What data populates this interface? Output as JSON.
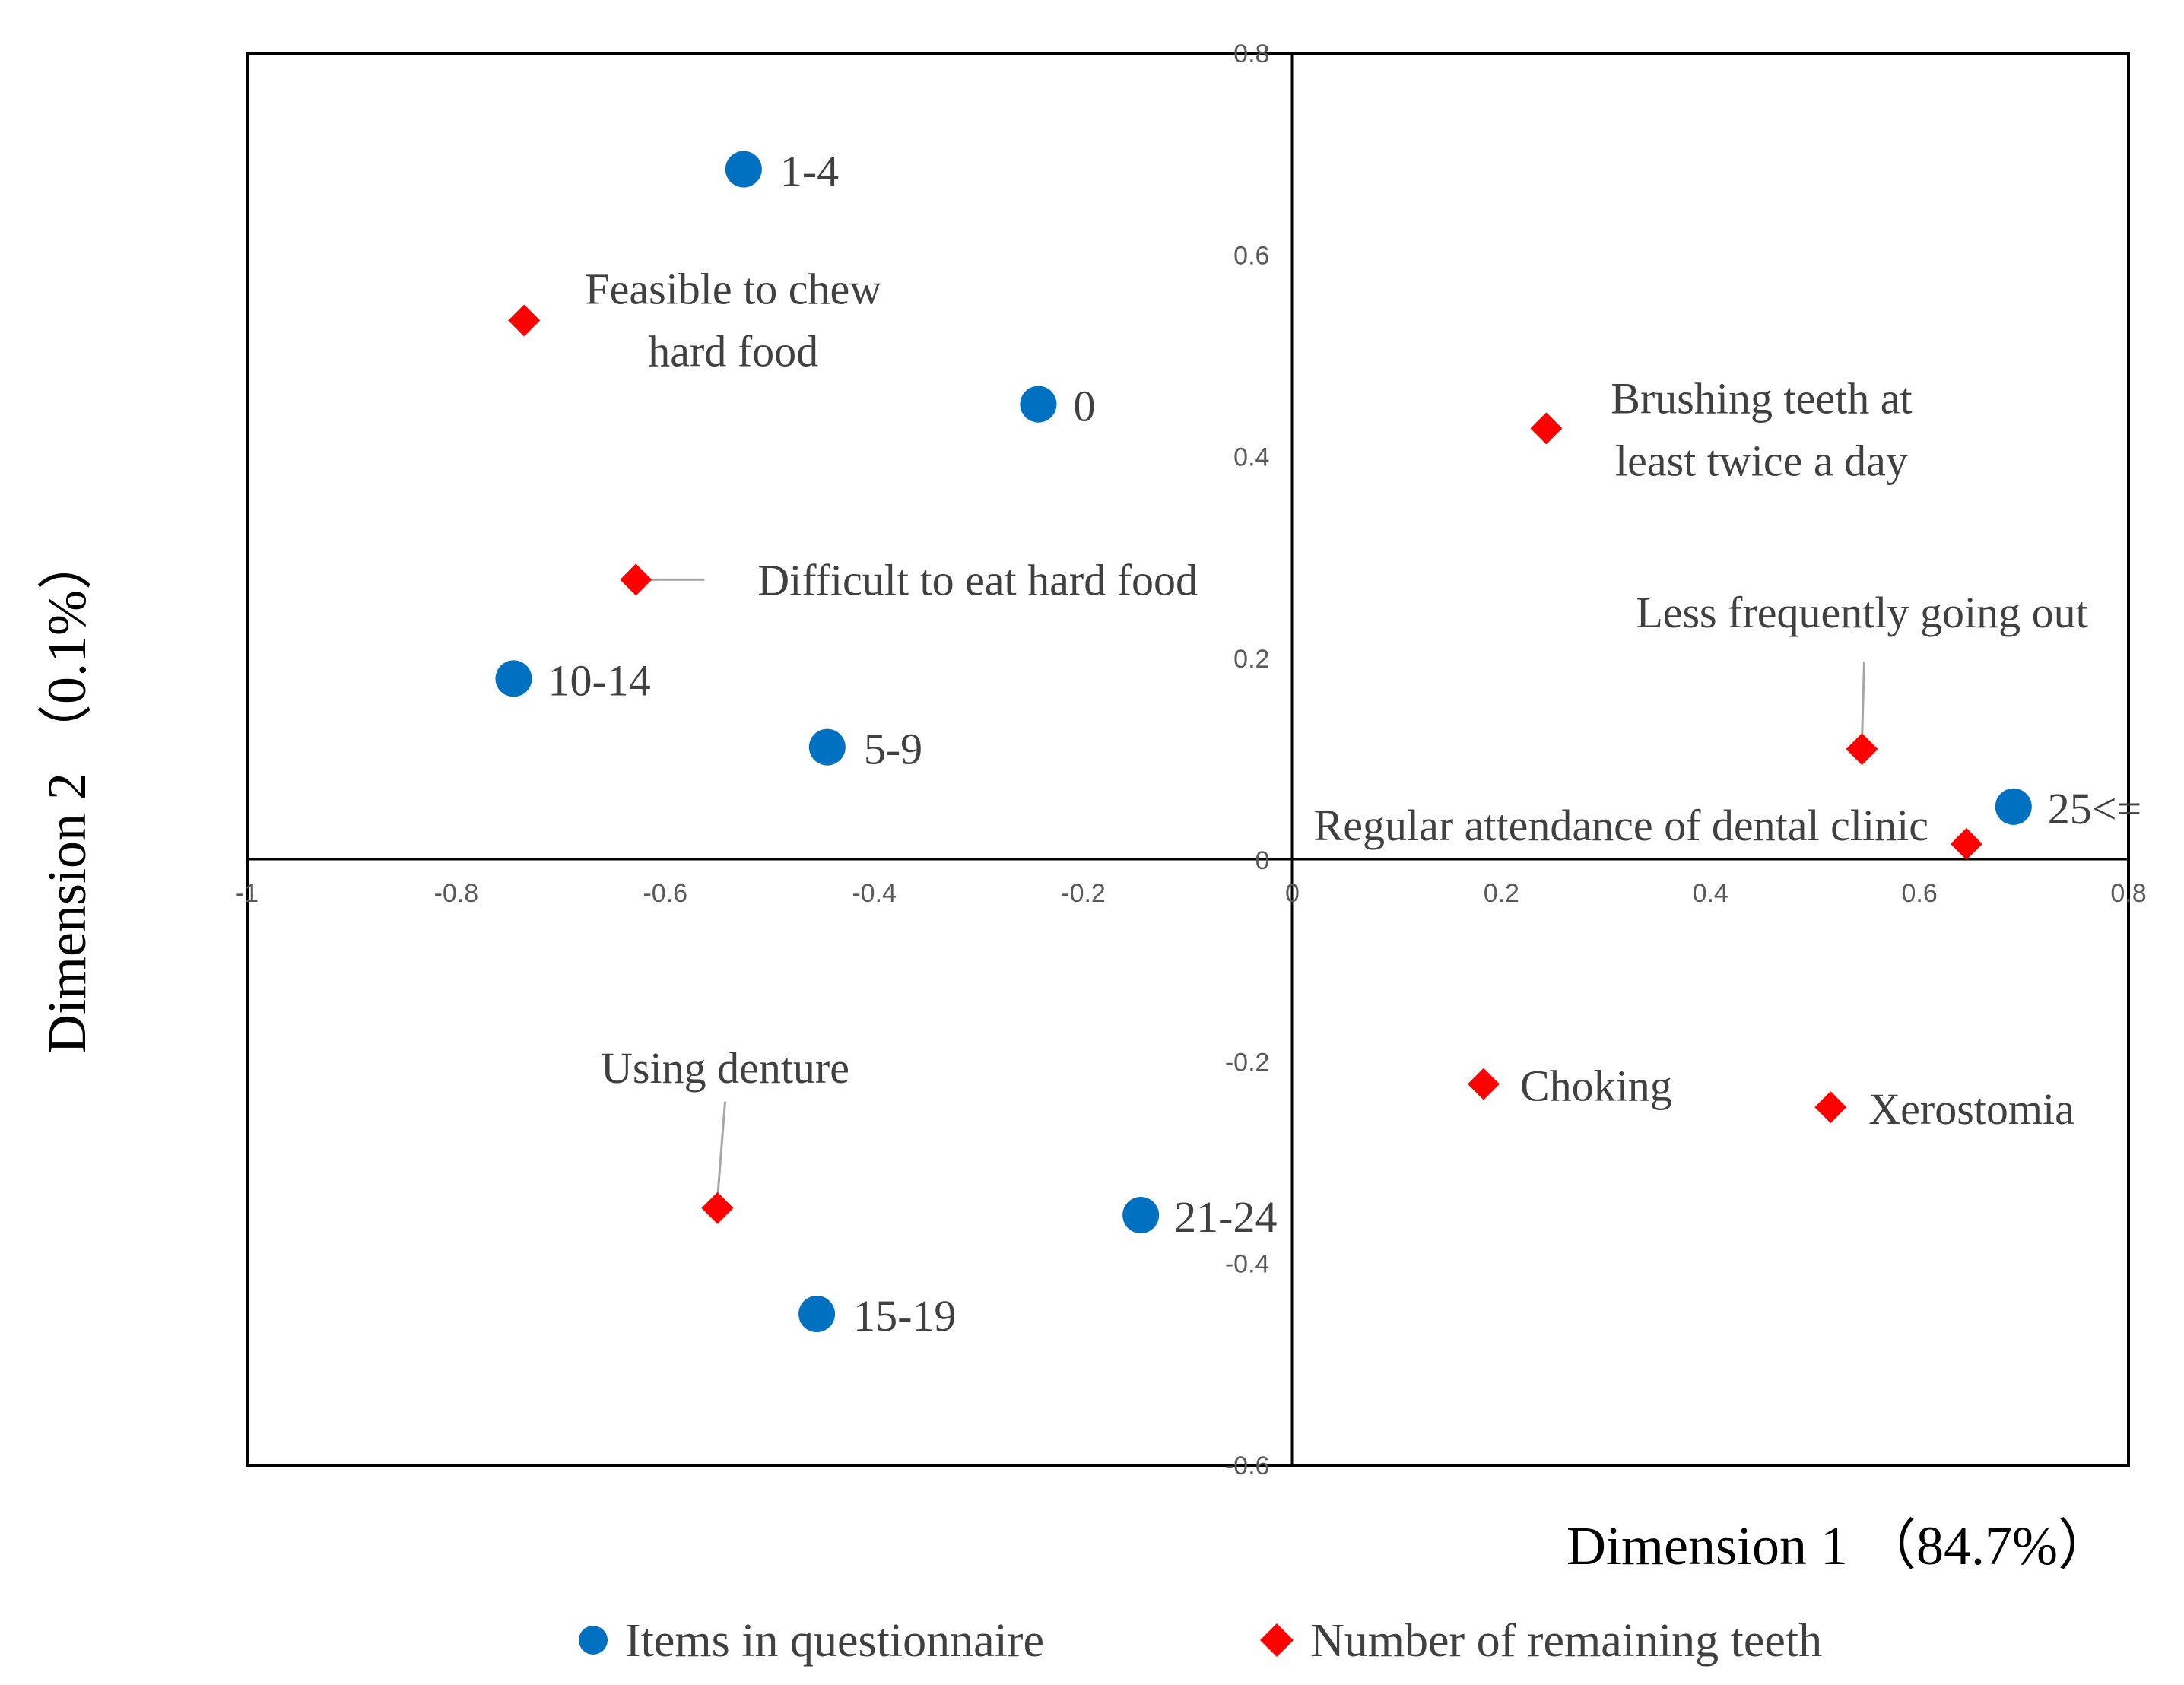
{
  "chart_data": {
    "type": "scatter",
    "xlabel": "Dimension 1 （84.7%）",
    "ylabel": "Dimension 2 （0.1%）",
    "xlim": [
      -1,
      0.8
    ],
    "ylim": [
      -0.6,
      0.8
    ],
    "x_ticks": [
      "-1",
      "-0.8",
      "-0.6",
      "-0.4",
      "-0.2",
      "0",
      "0.2",
      "0.4",
      "0.6",
      "0.8"
    ],
    "y_ticks": [
      "-0.6",
      "-0.4",
      "-0.2",
      "0",
      "0.2",
      "0.4",
      "0.6",
      "0.8"
    ],
    "grid": false,
    "legend_position": "bottom",
    "series": [
      {
        "name": "Items in questionnaire",
        "color": "#0070C0",
        "marker": "circle",
        "points": [
          {
            "label": "1-4",
            "x": -0.525,
            "y": 0.685
          },
          {
            "label": "0",
            "x": -0.243,
            "y": 0.452
          },
          {
            "label": "10-14",
            "x": -0.745,
            "y": 0.18
          },
          {
            "label": "5-9",
            "x": -0.445,
            "y": 0.112
          },
          {
            "label": "25<=",
            "x": 0.69,
            "y": 0.053
          },
          {
            "label": "21-24",
            "x": -0.145,
            "y": -0.352
          },
          {
            "label": "15-19",
            "x": -0.455,
            "y": -0.45
          }
        ]
      },
      {
        "name": "Number of remaining teeth",
        "color": "#FF0000",
        "marker": "diamond",
        "points": [
          {
            "label": "Feasible  to chew\nhard food",
            "x": -0.735,
            "y": 0.535
          },
          {
            "label": "Difficult to eat hard food",
            "x": -0.628,
            "y": 0.278
          },
          {
            "label": "Brushing teeth at\nleast twice a day",
            "x": 0.243,
            "y": 0.428
          },
          {
            "label": "Less frequently going out",
            "x": 0.545,
            "y": 0.11
          },
          {
            "label": "Regular attendance of dental clinic",
            "x": 0.645,
            "y": 0.016
          },
          {
            "label": "Choking",
            "x": 0.183,
            "y": -0.222
          },
          {
            "label": "Xerostomia",
            "x": 0.515,
            "y": -0.245
          },
          {
            "label": "Using denture",
            "x": -0.55,
            "y": -0.345
          }
        ]
      }
    ]
  }
}
